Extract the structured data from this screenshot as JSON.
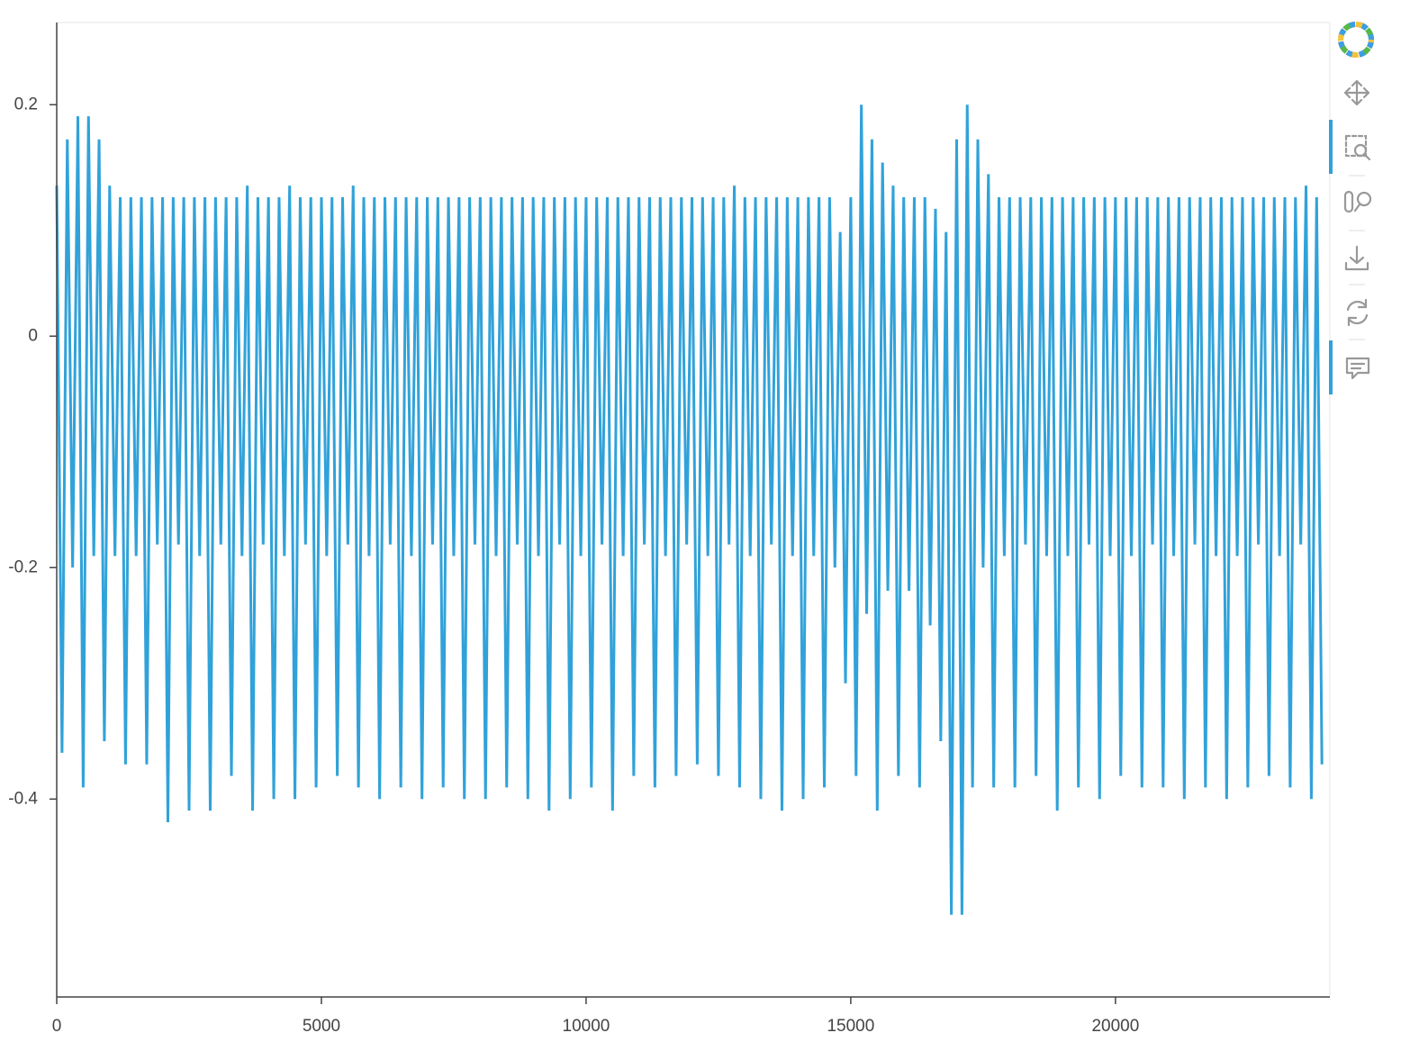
{
  "chart_data": {
    "type": "line",
    "color": "#31a2d9",
    "xlim": [
      0,
      24050
    ],
    "ylim": [
      -0.571,
      0.271
    ],
    "xticks": [
      0,
      5000,
      10000,
      15000,
      20000
    ],
    "yticks": [
      -0.4,
      -0.2,
      0,
      0.2
    ],
    "x": [
      0,
      100,
      200,
      300,
      400,
      500,
      600,
      700,
      800,
      900,
      1000,
      1100,
      1200,
      1300,
      1400,
      1500,
      1600,
      1700,
      1800,
      1900,
      2000,
      2100,
      2200,
      2300,
      2400,
      2500,
      2600,
      2700,
      2800,
      2900,
      3000,
      3100,
      3200,
      3300,
      3400,
      3500,
      3600,
      3700,
      3800,
      3900,
      4000,
      4100,
      4200,
      4300,
      4400,
      4500,
      4600,
      4700,
      4800,
      4900,
      5000,
      5100,
      5200,
      5300,
      5400,
      5500,
      5600,
      5700,
      5800,
      5900,
      6000,
      6100,
      6200,
      6300,
      6400,
      6500,
      6600,
      6700,
      6800,
      6900,
      7000,
      7100,
      7200,
      7300,
      7400,
      7500,
      7600,
      7700,
      7800,
      7900,
      8000,
      8100,
      8200,
      8300,
      8400,
      8500,
      8600,
      8700,
      8800,
      8900,
      9000,
      9100,
      9200,
      9300,
      9400,
      9500,
      9600,
      9700,
      9800,
      9900,
      10000,
      10100,
      10200,
      10300,
      10400,
      10500,
      10600,
      10700,
      10800,
      10900,
      11000,
      11100,
      11200,
      11300,
      11400,
      11500,
      11600,
      11700,
      11800,
      11900,
      12000,
      12100,
      12200,
      12300,
      12400,
      12500,
      12600,
      12700,
      12800,
      12900,
      13000,
      13100,
      13200,
      13300,
      13400,
      13500,
      13600,
      13700,
      13800,
      13900,
      14000,
      14100,
      14200,
      14300,
      14400,
      14500,
      14600,
      14700,
      14800,
      14900,
      15000,
      15100,
      15200,
      15300,
      15400,
      15500,
      15600,
      15700,
      15800,
      15900,
      16000,
      16100,
      16200,
      16300,
      16400,
      16500,
      16600,
      16700,
      16800,
      16900,
      17000,
      17100,
      17200,
      17300,
      17400,
      17500,
      17600,
      17700,
      17800,
      17900,
      18000,
      18100,
      18200,
      18300,
      18400,
      18500,
      18600,
      18700,
      18800,
      18900,
      19000,
      19100,
      19200,
      19300,
      19400,
      19500,
      19600,
      19700,
      19800,
      19900,
      20000,
      20100,
      20200,
      20300,
      20400,
      20500,
      20600,
      20700,
      20800,
      20900,
      21000,
      21100,
      21200,
      21300,
      21400,
      21500,
      21600,
      21700,
      21800,
      21900,
      22000,
      22100,
      22200,
      22300,
      22400,
      22500,
      22600,
      22700,
      22800,
      22900,
      23000,
      23100,
      23200,
      23300,
      23400,
      23500,
      23600,
      23700,
      23800,
      23900
    ],
    "values": [
      0.13,
      -0.36,
      0.17,
      -0.2,
      0.19,
      -0.39,
      0.19,
      -0.19,
      0.17,
      -0.35,
      0.13,
      -0.19,
      0.12,
      -0.37,
      0.12,
      -0.19,
      0.12,
      -0.37,
      0.12,
      -0.18,
      0.12,
      -0.42,
      0.12,
      -0.18,
      0.12,
      -0.41,
      0.12,
      -0.19,
      0.12,
      -0.41,
      0.12,
      -0.18,
      0.12,
      -0.38,
      0.12,
      -0.19,
      0.13,
      -0.41,
      0.12,
      -0.18,
      0.12,
      -0.4,
      0.12,
      -0.19,
      0.13,
      -0.4,
      0.12,
      -0.18,
      0.12,
      -0.39,
      0.12,
      -0.19,
      0.12,
      -0.38,
      0.12,
      -0.18,
      0.13,
      -0.39,
      0.12,
      -0.19,
      0.12,
      -0.4,
      0.12,
      -0.18,
      0.12,
      -0.39,
      0.12,
      -0.19,
      0.12,
      -0.4,
      0.12,
      -0.18,
      0.12,
      -0.39,
      0.12,
      -0.19,
      0.12,
      -0.4,
      0.12,
      -0.18,
      0.12,
      -0.4,
      0.12,
      -0.19,
      0.12,
      -0.39,
      0.12,
      -0.18,
      0.12,
      -0.4,
      0.12,
      -0.19,
      0.12,
      -0.41,
      0.12,
      -0.18,
      0.12,
      -0.4,
      0.12,
      -0.19,
      0.12,
      -0.39,
      0.12,
      -0.18,
      0.12,
      -0.41,
      0.12,
      -0.19,
      0.12,
      -0.38,
      0.12,
      -0.18,
      0.12,
      -0.39,
      0.12,
      -0.19,
      0.12,
      -0.38,
      0.12,
      -0.18,
      0.12,
      -0.37,
      0.12,
      -0.19,
      0.12,
      -0.38,
      0.12,
      -0.18,
      0.13,
      -0.39,
      0.12,
      -0.19,
      0.12,
      -0.4,
      0.12,
      -0.18,
      0.12,
      -0.41,
      0.12,
      -0.19,
      0.12,
      -0.4,
      0.12,
      -0.19,
      0.12,
      -0.39,
      0.12,
      -0.2,
      0.09,
      -0.3,
      0.12,
      -0.38,
      0.2,
      -0.24,
      0.17,
      -0.41,
      0.15,
      -0.22,
      0.13,
      -0.38,
      0.12,
      -0.22,
      0.12,
      -0.39,
      0.12,
      -0.25,
      0.11,
      -0.35,
      0.09,
      -0.5,
      0.17,
      -0.5,
      0.2,
      -0.39,
      0.17,
      -0.2,
      0.14,
      -0.39,
      0.12,
      -0.19,
      0.12,
      -0.39,
      0.12,
      -0.18,
      0.12,
      -0.38,
      0.12,
      -0.19,
      0.12,
      -0.41,
      0.12,
      -0.19,
      0.12,
      -0.39,
      0.12,
      -0.18,
      0.12,
      -0.4,
      0.12,
      -0.19,
      0.12,
      -0.38,
      0.12,
      -0.19,
      0.12,
      -0.39,
      0.12,
      -0.18,
      0.12,
      -0.39,
      0.12,
      -0.19,
      0.12,
      -0.4,
      0.12,
      -0.18,
      0.12,
      -0.39,
      0.12,
      -0.19,
      0.12,
      -0.4,
      0.12,
      -0.19,
      0.12,
      -0.39,
      0.12,
      -0.18,
      0.12,
      -0.38,
      0.12,
      -0.19,
      0.12,
      -0.39,
      0.12,
      -0.18,
      0.13,
      -0.4,
      0.12,
      -0.37
    ]
  }
}
